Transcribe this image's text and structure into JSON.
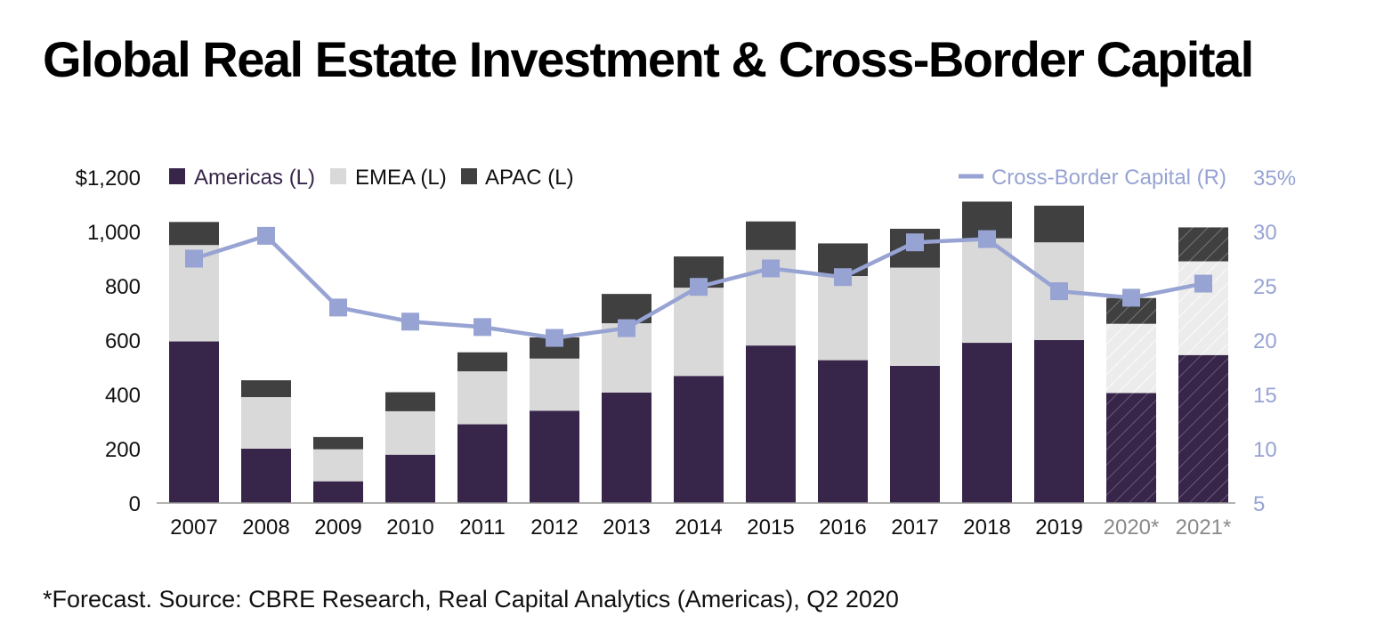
{
  "title": "Global Real Estate Investment & Cross-Border Capital",
  "footnote": "*Forecast. Source: CBRE Research, Real Capital Analytics (Americas), Q2 2020",
  "colors": {
    "americas": "#38264a",
    "emea": "#d9d9d9",
    "apac": "#404041",
    "line": "#97a3d3",
    "forecast_label": "#8a8a8a",
    "axis_text": "#111111"
  },
  "chart_data": {
    "type": "bar",
    "stacked": true,
    "categories": [
      "2007",
      "2008",
      "2009",
      "2010",
      "2011",
      "2012",
      "2013",
      "2014",
      "2015",
      "2016",
      "2017",
      "2018",
      "2019",
      "2020*",
      "2021*"
    ],
    "forecast_categories": [
      "2020*",
      "2021*"
    ],
    "series": [
      {
        "name": "Americas (L)",
        "axis": "left",
        "values": [
          595,
          200,
          80,
          178,
          290,
          340,
          407,
          468,
          580,
          526,
          505,
          590,
          600,
          405,
          545
        ]
      },
      {
        "name": "EMEA (L)",
        "axis": "left",
        "values": [
          355,
          190,
          118,
          160,
          195,
          192,
          255,
          325,
          352,
          310,
          362,
          385,
          360,
          255,
          345
        ]
      },
      {
        "name": "APAC (L)",
        "axis": "left",
        "values": [
          85,
          62,
          45,
          70,
          70,
          78,
          108,
          115,
          105,
          120,
          143,
          135,
          135,
          95,
          125
        ]
      },
      {
        "name": "Cross-Border Capital (R)",
        "axis": "right",
        "type": "line",
        "values": [
          27.5,
          29.6,
          23.0,
          21.7,
          21.2,
          20.2,
          21.1,
          24.9,
          26.6,
          25.8,
          29.0,
          29.3,
          24.5,
          23.9,
          25.2
        ]
      }
    ],
    "y_left": {
      "min": 0,
      "max": 1200,
      "ticks": [
        0,
        200,
        400,
        600,
        800,
        1000,
        1200
      ],
      "tick_labels": [
        "0",
        "200",
        "400",
        "600",
        "800",
        "1,000",
        "$1,200"
      ]
    },
    "y_right": {
      "min": 5,
      "max": 35,
      "ticks": [
        5,
        10,
        15,
        20,
        25,
        30,
        35
      ],
      "tick_labels": [
        "5",
        "10",
        "15",
        "20",
        "25",
        "30",
        "35%"
      ]
    },
    "grid": false,
    "legend": "top"
  }
}
